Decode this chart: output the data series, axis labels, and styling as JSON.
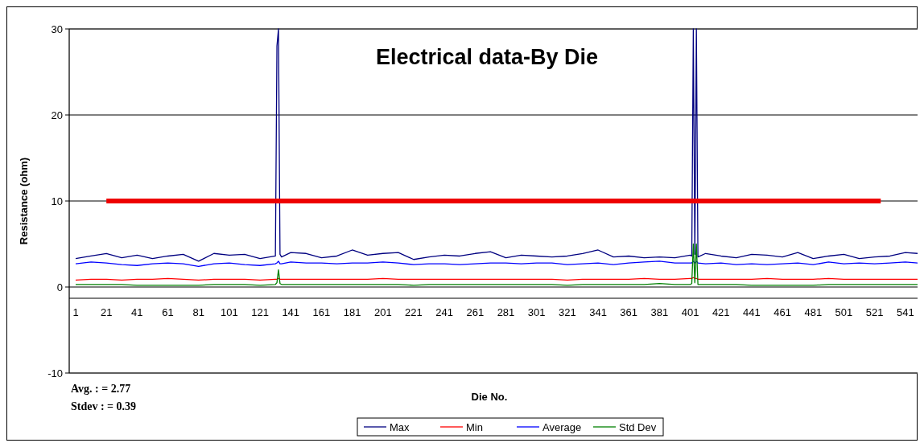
{
  "chart_data": {
    "type": "line",
    "title": "Electrical data-By Die",
    "xlabel": "Die No.",
    "ylabel": "Resistance (ohm)",
    "annotations": [
      "Avg. : = 2.77",
      "Stdev : = 0.39"
    ],
    "xlim": [
      1,
      550
    ],
    "xticks": [
      1,
      21,
      41,
      61,
      81,
      101,
      121,
      141,
      161,
      181,
      201,
      221,
      241,
      261,
      281,
      301,
      321,
      341,
      361,
      381,
      401,
      421,
      441,
      461,
      481,
      501,
      521,
      541
    ],
    "ylim": [
      -10,
      30
    ],
    "yticks": [
      -10,
      0,
      10,
      20,
      30
    ],
    "grid": "y",
    "legend": "bottom",
    "series": [
      {
        "name": "Max",
        "color": "#000080",
        "x": [
          1,
          11,
          21,
          31,
          41,
          51,
          61,
          71,
          81,
          91,
          101,
          111,
          121,
          131,
          132,
          133,
          134,
          135,
          141,
          151,
          161,
          171,
          181,
          191,
          201,
          211,
          221,
          231,
          241,
          251,
          261,
          271,
          281,
          291,
          301,
          311,
          321,
          331,
          341,
          351,
          361,
          371,
          381,
          391,
          401,
          402,
          403,
          404,
          405,
          406,
          411,
          421,
          431,
          441,
          451,
          461,
          471,
          481,
          491,
          501,
          511,
          521,
          531,
          541,
          549
        ],
        "values": [
          3.3,
          3.6,
          3.9,
          3.4,
          3.7,
          3.3,
          3.6,
          3.8,
          3.0,
          3.9,
          3.7,
          3.8,
          3.3,
          3.6,
          28,
          30,
          3.8,
          3.5,
          4.0,
          3.9,
          3.4,
          3.6,
          4.3,
          3.7,
          3.9,
          4.0,
          3.2,
          3.5,
          3.7,
          3.6,
          3.9,
          4.1,
          3.4,
          3.7,
          3.6,
          3.5,
          3.6,
          3.9,
          4.3,
          3.5,
          3.6,
          3.4,
          3.5,
          3.4,
          3.7,
          3.6,
          30,
          3.8,
          30,
          3.5,
          3.9,
          3.6,
          3.4,
          3.8,
          3.7,
          3.5,
          4.0,
          3.3,
          3.6,
          3.8,
          3.3,
          3.5,
          3.6,
          4.0,
          3.9
        ]
      },
      {
        "name": "Min",
        "color": "#ff0000",
        "x": [
          1,
          11,
          21,
          31,
          41,
          51,
          61,
          71,
          81,
          91,
          101,
          111,
          121,
          131,
          132,
          133,
          134,
          135,
          141,
          151,
          161,
          171,
          181,
          191,
          201,
          211,
          221,
          231,
          241,
          251,
          261,
          271,
          281,
          291,
          301,
          311,
          321,
          331,
          341,
          351,
          361,
          371,
          381,
          391,
          401,
          402,
          403,
          404,
          405,
          406,
          411,
          421,
          431,
          441,
          451,
          461,
          471,
          481,
          491,
          501,
          511,
          521,
          531,
          541,
          549
        ],
        "values": [
          0.8,
          0.9,
          0.9,
          0.8,
          0.9,
          0.9,
          1.0,
          0.9,
          0.8,
          0.9,
          0.9,
          0.9,
          0.8,
          0.9,
          0.9,
          1.0,
          0.9,
          0.9,
          0.9,
          0.9,
          0.9,
          0.9,
          0.9,
          0.9,
          1.0,
          0.9,
          0.9,
          0.9,
          0.9,
          0.9,
          0.9,
          0.9,
          0.9,
          0.9,
          0.9,
          0.9,
          0.8,
          0.9,
          0.9,
          0.9,
          0.9,
          1.0,
          0.9,
          0.9,
          1.0,
          1.0,
          1.1,
          1.0,
          1.0,
          0.9,
          0.9,
          0.9,
          0.9,
          0.9,
          1.0,
          0.9,
          0.9,
          0.9,
          1.0,
          0.9,
          0.9,
          0.9,
          0.9,
          0.9,
          0.9
        ]
      },
      {
        "name": "Average",
        "color": "#0000ff",
        "x": [
          1,
          11,
          21,
          31,
          41,
          51,
          61,
          71,
          81,
          91,
          101,
          111,
          121,
          131,
          132,
          133,
          134,
          135,
          141,
          151,
          161,
          171,
          181,
          191,
          201,
          211,
          221,
          231,
          241,
          251,
          261,
          271,
          281,
          291,
          301,
          311,
          321,
          331,
          341,
          351,
          361,
          371,
          381,
          391,
          401,
          402,
          403,
          404,
          405,
          406,
          411,
          421,
          431,
          441,
          451,
          461,
          471,
          481,
          491,
          501,
          511,
          521,
          531,
          541,
          549
        ],
        "values": [
          2.7,
          2.9,
          2.8,
          2.6,
          2.5,
          2.7,
          2.8,
          2.7,
          2.4,
          2.7,
          2.8,
          2.6,
          2.5,
          2.7,
          2.8,
          3.0,
          2.7,
          2.7,
          2.9,
          2.8,
          2.8,
          2.7,
          2.8,
          2.8,
          2.9,
          2.8,
          2.6,
          2.7,
          2.7,
          2.6,
          2.7,
          2.8,
          2.8,
          2.7,
          2.8,
          2.8,
          2.6,
          2.7,
          2.8,
          2.6,
          2.8,
          2.9,
          3.0,
          2.8,
          2.8,
          2.8,
          3.0,
          2.8,
          3.0,
          2.8,
          2.7,
          2.8,
          2.6,
          2.7,
          2.6,
          2.7,
          2.8,
          2.6,
          2.9,
          2.7,
          2.8,
          2.7,
          2.8,
          2.9,
          2.8
        ]
      },
      {
        "name": "Std Dev",
        "color": "#008000",
        "x": [
          1,
          11,
          21,
          31,
          41,
          51,
          61,
          71,
          81,
          91,
          101,
          111,
          121,
          131,
          132,
          133,
          134,
          135,
          141,
          151,
          161,
          171,
          181,
          191,
          201,
          211,
          221,
          231,
          241,
          251,
          261,
          271,
          281,
          291,
          301,
          311,
          321,
          331,
          341,
          351,
          361,
          371,
          381,
          391,
          401,
          402,
          403,
          404,
          405,
          406,
          411,
          421,
          431,
          441,
          451,
          461,
          471,
          481,
          491,
          501,
          511,
          521,
          531,
          541,
          549
        ],
        "values": [
          0.3,
          0.3,
          0.3,
          0.3,
          0.2,
          0.2,
          0.2,
          0.2,
          0.2,
          0.3,
          0.3,
          0.3,
          0.2,
          0.3,
          0.5,
          2.0,
          0.4,
          0.3,
          0.3,
          0.3,
          0.3,
          0.3,
          0.3,
          0.3,
          0.3,
          0.3,
          0.2,
          0.3,
          0.3,
          0.3,
          0.3,
          0.3,
          0.3,
          0.3,
          0.3,
          0.3,
          0.2,
          0.3,
          0.3,
          0.3,
          0.3,
          0.3,
          0.4,
          0.3,
          0.3,
          0.4,
          5.0,
          0.5,
          5.0,
          0.3,
          0.3,
          0.3,
          0.3,
          0.2,
          0.2,
          0.2,
          0.2,
          0.2,
          0.3,
          0.3,
          0.3,
          0.3,
          0.3,
          0.3,
          0.3
        ]
      },
      {
        "color": "#ee0000",
        "x": [
          21,
          525
        ],
        "values": [
          10,
          10
        ]
      }
    ]
  }
}
